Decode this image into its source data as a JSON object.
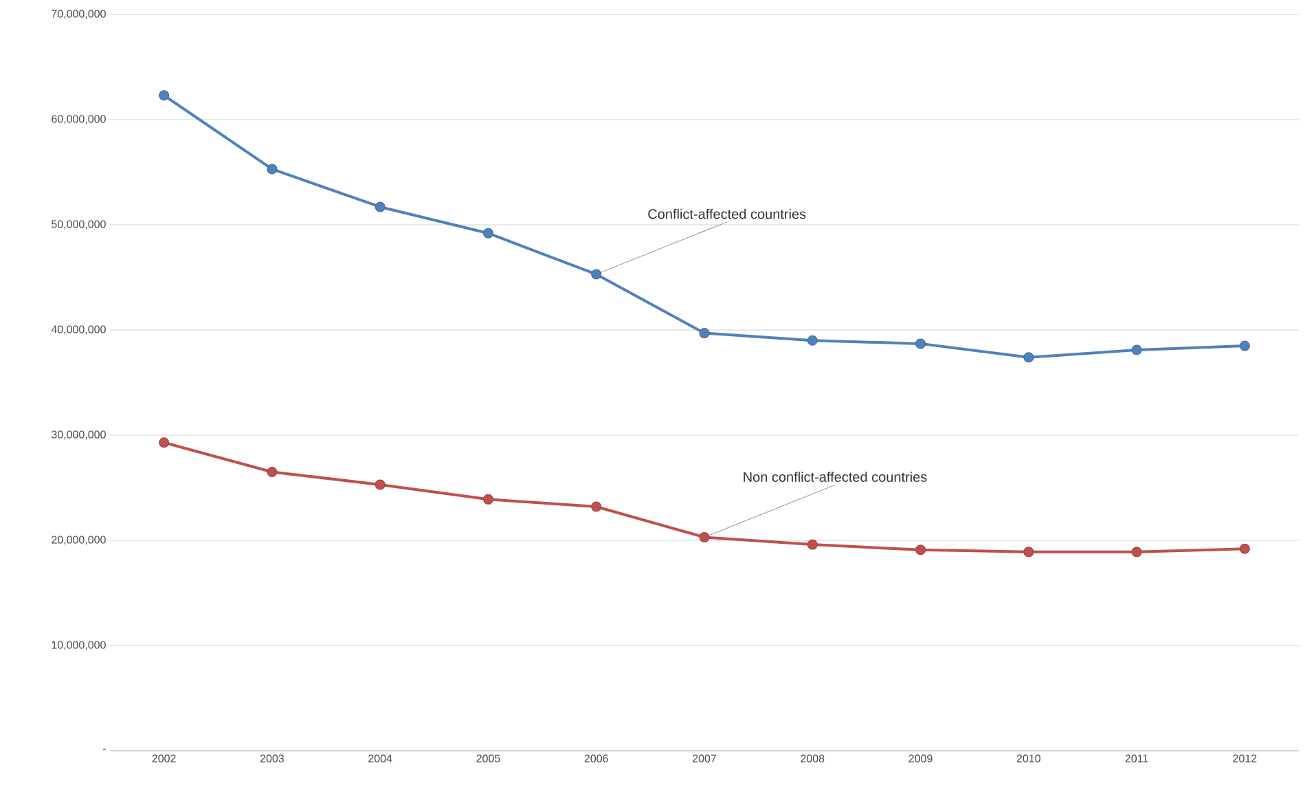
{
  "chart_data": {
    "type": "line",
    "categories": [
      "2002",
      "2003",
      "2004",
      "2005",
      "2006",
      "2007",
      "2008",
      "2009",
      "2010",
      "2011",
      "2012"
    ],
    "series": [
      {
        "color": "#4f81bd",
        "values": [
          62300000,
          55300000,
          51700000,
          49200000,
          45300000,
          39700000,
          39000000,
          38700000,
          37400000,
          38100000,
          38500000
        ]
      },
      {
        "color": "#c0504d",
        "values": [
          29300000,
          26500000,
          25300000,
          23900000,
          23200000,
          20300000,
          19600000,
          19100000,
          18900000,
          18900000,
          19200000
        ]
      }
    ],
    "ylim": [
      0,
      70000000
    ],
    "yticks": [
      {
        "value": 0,
        "label": "-"
      },
      {
        "value": 10000000,
        "label": "10,000,000"
      },
      {
        "value": 20000000,
        "label": "20,000,000"
      },
      {
        "value": 30000000,
        "label": "30,000,000"
      },
      {
        "value": 40000000,
        "label": "40,000,000"
      },
      {
        "value": 50000000,
        "label": "50,000,000"
      },
      {
        "value": 60000000,
        "label": "60,000,000"
      },
      {
        "value": 70000000,
        "label": "70,000,000"
      }
    ],
    "grid": "y",
    "marker": "circle",
    "line_style": "solid",
    "annotations": [
      {
        "text": "Conflict-affected countries",
        "x": "2006",
        "y": 45300000
      },
      {
        "text": "Non conflict-affected countries",
        "x": "2007",
        "y": 20300000
      }
    ]
  }
}
